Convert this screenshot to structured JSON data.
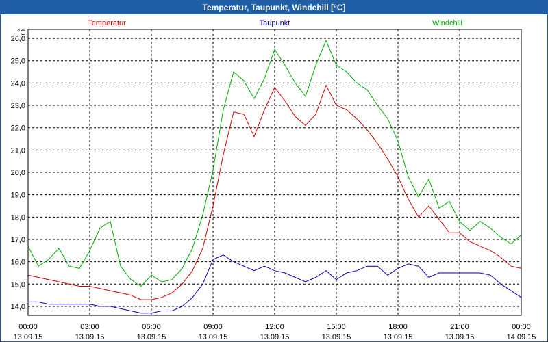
{
  "chart_data": {
    "type": "line",
    "title": "Temperatur, Taupunkt, Windchill [°C]",
    "ylabel": "°C",
    "ylim": [
      13.6,
      26.4
    ],
    "yticks": [
      "14,0",
      "15,0",
      "16,0",
      "17,0",
      "18,0",
      "19,0",
      "20,0",
      "21,0",
      "22,0",
      "23,0",
      "24,0",
      "25,0",
      "26,0"
    ],
    "ytick_values": [
      14,
      15,
      16,
      17,
      18,
      19,
      20,
      21,
      22,
      23,
      24,
      25,
      26
    ],
    "xlim": [
      0,
      24
    ],
    "xticks": [
      {
        "time": "00:00",
        "date": "13.09.15"
      },
      {
        "time": "03:00",
        "date": "13.09.15"
      },
      {
        "time": "06:00",
        "date": "13.09.15"
      },
      {
        "time": "09:00",
        "date": "13.09.15"
      },
      {
        "time": "12:00",
        "date": "13.09.15"
      },
      {
        "time": "15:00",
        "date": "13.09.15"
      },
      {
        "time": "18:00",
        "date": "13.09.15"
      },
      {
        "time": "21:00",
        "date": "13.09.15"
      },
      {
        "time": "00:00",
        "date": "14.09.15"
      }
    ],
    "xtick_values": [
      0,
      3,
      6,
      9,
      12,
      15,
      18,
      21,
      24
    ],
    "grid": true,
    "series": [
      {
        "name": "Temperatur",
        "color": "#cc0000",
        "x": [
          0,
          0.5,
          1,
          1.5,
          2,
          2.5,
          3,
          3.5,
          4,
          4.5,
          5,
          5.5,
          6,
          6.5,
          7,
          7.5,
          8,
          8.5,
          9,
          9.5,
          10,
          10.5,
          11,
          11.5,
          12,
          12.5,
          13,
          13.5,
          14,
          14.5,
          15,
          15.5,
          16,
          16.5,
          17,
          17.5,
          18,
          18.5,
          19,
          19.5,
          20,
          20.5,
          21,
          21.5,
          22,
          22.5,
          23,
          23.5,
          24
        ],
        "values": [
          15.4,
          15.3,
          15.2,
          15.1,
          15.0,
          14.9,
          14.9,
          14.8,
          14.7,
          14.6,
          14.5,
          14.3,
          14.3,
          14.4,
          14.6,
          15.0,
          15.6,
          16.6,
          18.5,
          20.8,
          22.7,
          22.6,
          21.6,
          22.8,
          23.8,
          23.2,
          22.5,
          22.1,
          22.6,
          23.9,
          23.0,
          22.8,
          22.4,
          21.9,
          21.3,
          20.6,
          19.8,
          18.8,
          18.0,
          18.5,
          17.9,
          17.3,
          17.3,
          16.9,
          16.7,
          16.5,
          16.2,
          15.8,
          15.7
        ]
      },
      {
        "name": "Taupunkt",
        "color": "#0000aa",
        "x": [
          0,
          0.5,
          1,
          1.5,
          2,
          2.5,
          3,
          3.5,
          4,
          4.5,
          5,
          5.5,
          6,
          6.5,
          7,
          7.5,
          8,
          8.5,
          9,
          9.5,
          10,
          10.5,
          11,
          11.5,
          12,
          12.5,
          13,
          13.5,
          14,
          14.5,
          15,
          15.5,
          16,
          16.5,
          17,
          17.5,
          18,
          18.5,
          19,
          19.5,
          20,
          20.5,
          21,
          21.5,
          22,
          22.5,
          23,
          23.5,
          24
        ],
        "values": [
          14.2,
          14.2,
          14.1,
          14.1,
          14.1,
          14.1,
          14.1,
          14.0,
          14.0,
          13.9,
          13.8,
          13.7,
          13.7,
          13.8,
          13.8,
          14.0,
          14.4,
          15.0,
          16.1,
          16.3,
          16.0,
          15.8,
          15.6,
          15.8,
          15.6,
          15.5,
          15.3,
          15.1,
          15.3,
          15.6,
          15.2,
          15.5,
          15.6,
          15.8,
          15.8,
          15.4,
          15.7,
          15.9,
          15.8,
          15.3,
          15.5,
          15.5,
          15.5,
          15.5,
          15.5,
          15.4,
          15.0,
          14.7,
          14.4
        ]
      },
      {
        "name": "Windchill",
        "color": "#00aa00",
        "x": [
          0,
          0.5,
          1,
          1.5,
          2,
          2.5,
          3,
          3.5,
          4,
          4.5,
          5,
          5.5,
          6,
          6.5,
          7,
          7.5,
          8,
          8.5,
          9,
          9.5,
          10,
          10.5,
          11,
          11.5,
          12,
          12.5,
          13,
          13.5,
          14,
          14.5,
          15,
          15.5,
          16,
          16.5,
          17,
          17.5,
          18,
          18.5,
          19,
          19.5,
          20,
          20.5,
          21,
          21.5,
          22,
          22.5,
          23,
          23.5,
          24
        ],
        "values": [
          16.7,
          15.8,
          16.1,
          16.6,
          15.8,
          15.7,
          16.5,
          17.5,
          17.8,
          15.8,
          15.2,
          14.9,
          15.4,
          15.1,
          15.2,
          15.7,
          16.6,
          18.1,
          20.1,
          22.8,
          24.5,
          24.1,
          23.3,
          24.2,
          25.5,
          24.8,
          24.0,
          23.4,
          24.8,
          25.9,
          24.8,
          24.5,
          24.0,
          23.7,
          23.0,
          22.4,
          21.4,
          19.8,
          18.9,
          19.7,
          18.4,
          18.7,
          17.8,
          17.4,
          17.8,
          17.5,
          17.1,
          16.8,
          17.2
        ]
      }
    ]
  }
}
